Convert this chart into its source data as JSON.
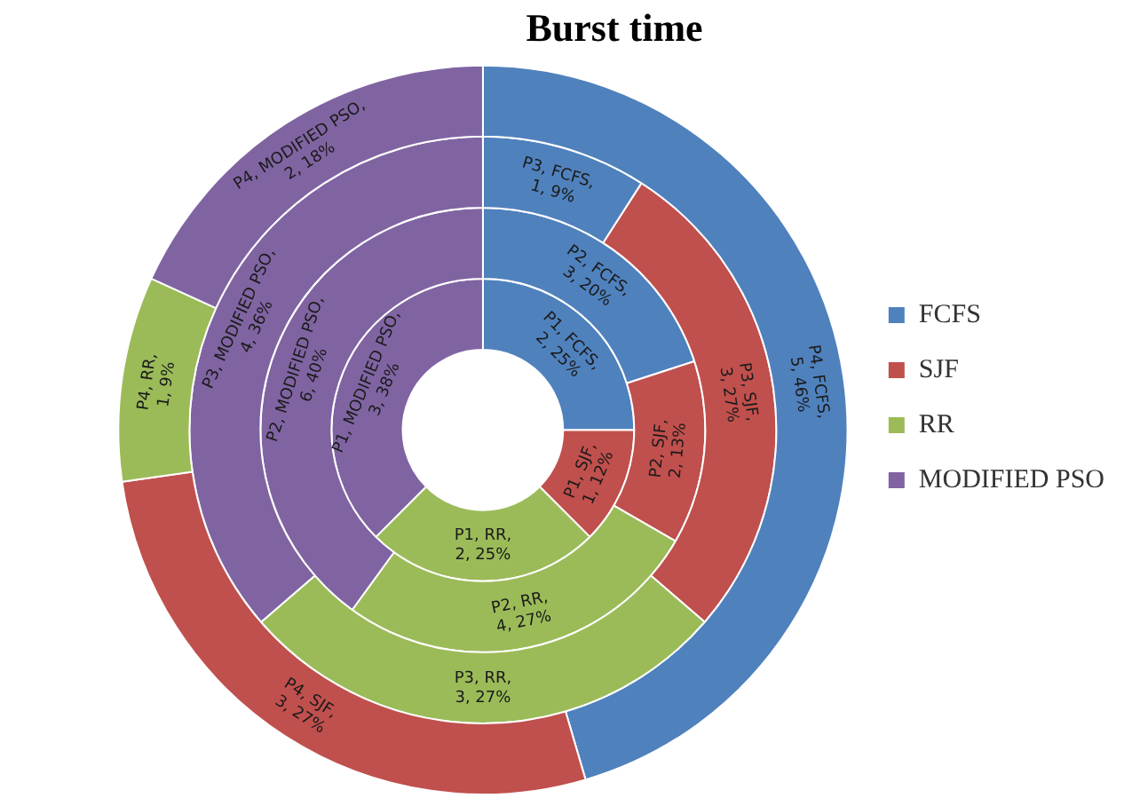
{
  "chart_data": {
    "type": "donut",
    "title": "Burst time",
    "categories": [
      "FCFS",
      "SJF",
      "RR",
      "MODIFIED PSO"
    ],
    "colors": [
      "#4f81bd",
      "#c0504d",
      "#9bbb59",
      "#8064a2"
    ],
    "legend": "right",
    "series": [
      {
        "values": [
          2,
          1,
          2,
          3
        ],
        "value_labels": [
          "P1, FCFS, 2, 25%",
          "P1, SJF, 1, 12%",
          "P1, RR, 2, 25%",
          "P1, MODIFIED PSO, 3, 38%"
        ]
      },
      {
        "values": [
          3,
          2,
          4,
          6
        ],
        "value_labels": [
          "P2, FCFS, 3, 20%",
          "P2, SJF, 2, 13%",
          "P2, RR, 4, 27%",
          "P2, MODIFIED PSO, 6, 40%"
        ]
      },
      {
        "values": [
          1,
          3,
          3,
          4
        ],
        "value_labels": [
          "P3, FCFS, 1, 9%",
          "P3, SJF, 3, 27%",
          "P3, RR, 3, 27%",
          "P3, MODIFIED PSO, 4, 36%"
        ]
      },
      {
        "values": [
          5,
          3,
          1,
          2
        ],
        "value_labels": [
          "P4, FCFS, 5, 46%",
          "P4, SJF, 3, 27%",
          "P4, RR, 1, 9%",
          "P4, MODIFIED PSO, 2, 18%"
        ]
      }
    ]
  }
}
